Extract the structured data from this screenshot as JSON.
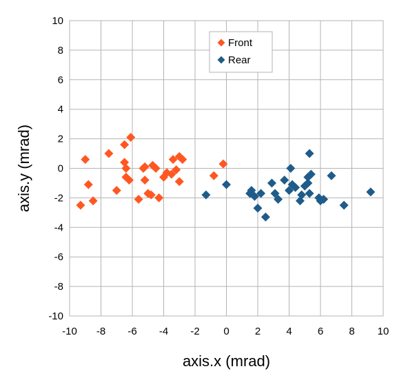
{
  "chart_data": {
    "type": "scatter",
    "title": "",
    "xlabel": "axis.x (mrad)",
    "ylabel": "axis.y  (mrad)",
    "xlim": [
      -10,
      10
    ],
    "ylim": [
      -10,
      10
    ],
    "xticks": [
      -10,
      -8,
      -6,
      -4,
      -2,
      0,
      2,
      4,
      6,
      8,
      10
    ],
    "yticks": [
      -10,
      -8,
      -6,
      -4,
      -2,
      0,
      2,
      4,
      6,
      8,
      10
    ],
    "grid": true,
    "legend_position": "top-center",
    "series": [
      {
        "name": "Front",
        "color": "#ff5722",
        "marker": "diamond",
        "points": [
          [
            -9.3,
            -2.5
          ],
          [
            -9.0,
            0.6
          ],
          [
            -8.8,
            -1.1
          ],
          [
            -8.5,
            -2.2
          ],
          [
            -7.5,
            1.0
          ],
          [
            -7.0,
            -1.5
          ],
          [
            -6.5,
            1.6
          ],
          [
            -6.5,
            0.4
          ],
          [
            -6.4,
            -0.6
          ],
          [
            -6.4,
            0.0
          ],
          [
            -6.2,
            -0.8
          ],
          [
            -6.1,
            2.1
          ],
          [
            -5.6,
            -2.1
          ],
          [
            -5.3,
            0.0
          ],
          [
            -5.2,
            -0.8
          ],
          [
            -5.2,
            0.1
          ],
          [
            -5.0,
            -1.7
          ],
          [
            -4.8,
            -1.8
          ],
          [
            -4.7,
            0.2
          ],
          [
            -4.5,
            0.0
          ],
          [
            -4.3,
            -2.0
          ],
          [
            -4.0,
            -0.6
          ],
          [
            -3.8,
            -0.3
          ],
          [
            -3.5,
            -0.4
          ],
          [
            -3.4,
            0.6
          ],
          [
            -3.2,
            -0.1
          ],
          [
            -3.0,
            0.8
          ],
          [
            -3.0,
            -0.9
          ],
          [
            -2.8,
            0.6
          ],
          [
            -0.8,
            -0.5
          ],
          [
            -0.2,
            0.3
          ]
        ]
      },
      {
        "name": "Rear",
        "color": "#1f5c8a",
        "marker": "diamond",
        "points": [
          [
            -1.3,
            -1.8
          ],
          [
            0.0,
            -1.1
          ],
          [
            1.5,
            -1.7
          ],
          [
            1.6,
            -1.5
          ],
          [
            1.8,
            -1.9
          ],
          [
            2.0,
            -2.7
          ],
          [
            2.2,
            -1.7
          ],
          [
            2.5,
            -3.3
          ],
          [
            2.9,
            -1.0
          ],
          [
            3.1,
            -1.7
          ],
          [
            3.3,
            -2.1
          ],
          [
            3.7,
            -0.8
          ],
          [
            4.0,
            -1.5
          ],
          [
            4.1,
            0.0
          ],
          [
            4.2,
            -1.1
          ],
          [
            4.4,
            -1.3
          ],
          [
            4.7,
            -2.2
          ],
          [
            4.8,
            -1.8
          ],
          [
            5.0,
            -1.2
          ],
          [
            5.2,
            -1.0
          ],
          [
            5.2,
            -0.6
          ],
          [
            5.3,
            1.0
          ],
          [
            5.3,
            -1.7
          ],
          [
            5.4,
            -0.4
          ],
          [
            5.9,
            -2.0
          ],
          [
            6.0,
            -2.2
          ],
          [
            6.2,
            -2.1
          ],
          [
            6.7,
            -0.5
          ],
          [
            7.5,
            -2.5
          ],
          [
            9.2,
            -1.6
          ]
        ]
      }
    ]
  }
}
